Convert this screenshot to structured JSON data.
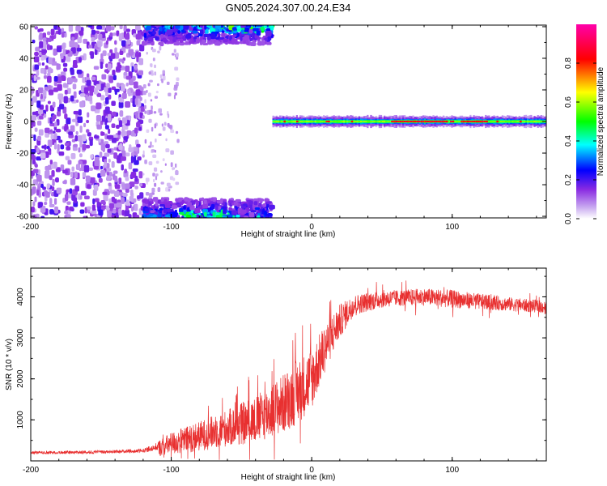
{
  "title": "GN05.2024.307.00.24.E34",
  "chart_data": [
    {
      "type": "heatmap",
      "xlabel": "Height of straight line (km)",
      "ylabel": "Frequency (Hz)",
      "xlim": [
        -200,
        167
      ],
      "ylim": [
        -61,
        61
      ],
      "xticks": [
        -200,
        -100,
        0,
        100
      ],
      "yticks": [
        -60,
        -40,
        -20,
        0,
        20,
        40,
        60
      ],
      "colorbar": {
        "label": "Normalized spectral amplitude",
        "range": [
          0,
          1
        ],
        "ticks": [
          "0.0",
          "0.2",
          "0.4",
          "0.6",
          "0.8"
        ],
        "colors": [
          "#ffffff",
          "#8a2be2",
          "#0000ff",
          "#00ffff",
          "#00ff00",
          "#ffff00",
          "#ff0000",
          "#ff00aa"
        ]
      },
      "regions": [
        {
          "x": [
            -200,
            -120
          ],
          "y": [
            -61,
            61
          ],
          "amplitude": 0.1,
          "pattern": "speckle"
        },
        {
          "x": [
            -120,
            -95
          ],
          "y": [
            -61,
            61
          ],
          "amplitude": 0.04,
          "pattern": "sparse"
        },
        {
          "x": [
            -120,
            -28
          ],
          "y": [
            49,
            61
          ],
          "amplitude": 0.35,
          "pattern": "band"
        },
        {
          "x": [
            -120,
            -28
          ],
          "y": [
            -61,
            -49
          ],
          "amplitude": 0.35,
          "pattern": "band"
        },
        {
          "x": [
            -28,
            167
          ],
          "y": [
            -3,
            3
          ],
          "amplitude": 0.9,
          "pattern": "line"
        }
      ]
    },
    {
      "type": "line",
      "xlabel": "Height of straight line (km)",
      "ylabel": "SNR (10 * v/v)",
      "xlim": [
        -200,
        167
      ],
      "ylim": [
        0,
        4700
      ],
      "xticks": [
        -200,
        -100,
        0,
        100
      ],
      "yticks": [
        1000,
        2000,
        3000,
        4000
      ],
      "color": "#e83030",
      "trend": {
        "x": [
          -200,
          -150,
          -120,
          -110,
          -100,
          -80,
          -60,
          -40,
          -20,
          0,
          10,
          20,
          30,
          50,
          80,
          100,
          130,
          167
        ],
        "y": [
          180,
          190,
          220,
          300,
          420,
          600,
          800,
          1000,
          1400,
          2000,
          2800,
          3400,
          3800,
          3950,
          4000,
          3950,
          3850,
          3750
        ]
      },
      "noise": {
        "x": [
          -200,
          -120,
          -100,
          -60,
          -30,
          -10,
          0,
          15,
          30,
          60,
          100,
          130,
          167
        ],
        "y": [
          70,
          90,
          280,
          450,
          650,
          800,
          750,
          500,
          250,
          200,
          220,
          180,
          150
        ]
      }
    }
  ]
}
